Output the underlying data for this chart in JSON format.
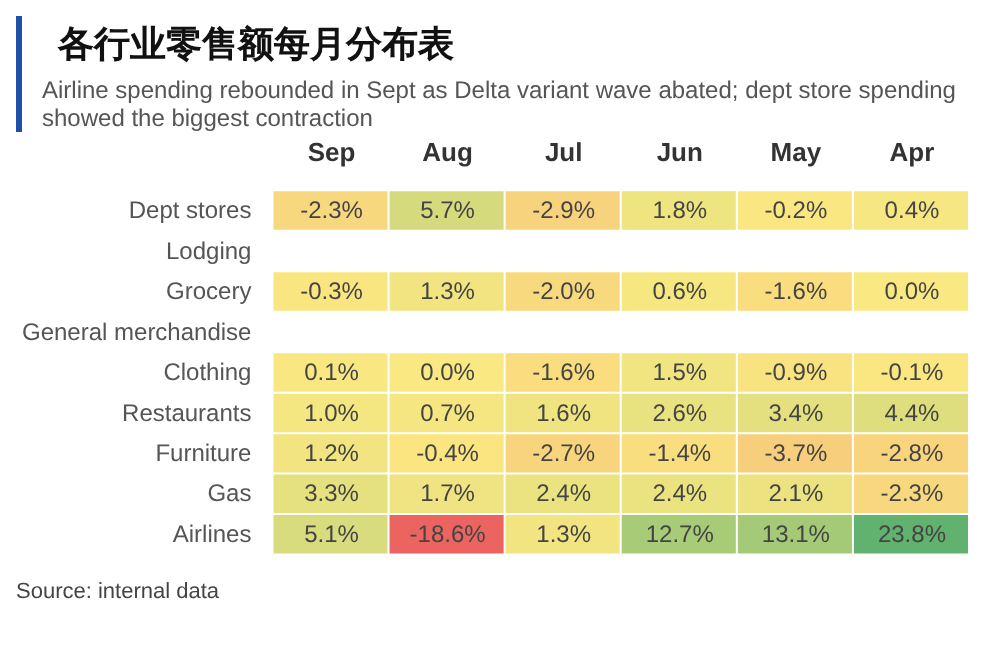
{
  "chart_data": {
    "type": "heatmap",
    "title": "各行业零售额每月分布表",
    "subtitle": "Airline spending rebounded in Sept as Delta variant wave abated; dept store spending showed the biggest contraction",
    "categories": [
      "Sep",
      "Aug",
      "Jul",
      "Jun",
      "May",
      "Apr"
    ],
    "y_categories": [
      "Dept stores",
      "Lodging",
      "Grocery",
      "General merchandise",
      "Clothing",
      "Restaurants",
      "Furniture",
      "Gas",
      "Airlines"
    ],
    "cells": [
      [
        -2.3,
        5.7,
        -2.9,
        1.8,
        -0.2,
        0.4
      ],
      [
        null,
        null,
        null,
        null,
        null,
        null
      ],
      [
        -0.3,
        1.3,
        -2.0,
        0.6,
        -1.6,
        0.0
      ],
      [
        null,
        null,
        null,
        null,
        null,
        null
      ],
      [
        0.1,
        0.0,
        -1.6,
        1.5,
        -0.9,
        -0.1
      ],
      [
        1.0,
        0.7,
        1.6,
        2.6,
        3.4,
        4.4
      ],
      [
        1.2,
        -0.4,
        -2.7,
        -1.4,
        -3.7,
        -2.8
      ],
      [
        3.3,
        1.7,
        2.4,
        2.4,
        2.1,
        -2.3
      ],
      [
        5.1,
        -18.6,
        1.3,
        12.7,
        13.1,
        23.8
      ]
    ],
    "cell_labels": [
      [
        "-2.3%",
        "5.7%",
        "-2.9%",
        "1.8%",
        "-0.2%",
        "0.4%"
      ],
      [
        null,
        null,
        null,
        null,
        null,
        null
      ],
      [
        "-0.3%",
        "1.3%",
        "-2.0%",
        "0.6%",
        "-1.6%",
        "0.0%"
      ],
      [
        null,
        null,
        null,
        null,
        null,
        null
      ],
      [
        "0.1%",
        "0.0%",
        "-1.6%",
        "1.5%",
        "-0.9%",
        "-0.1%"
      ],
      [
        "1.0%",
        "0.7%",
        "1.6%",
        "2.6%",
        "3.4%",
        "4.4%"
      ],
      [
        "1.2%",
        "-0.4%",
        "-2.7%",
        "-1.4%",
        "-3.7%",
        "-2.8%"
      ],
      [
        "3.3%",
        "1.7%",
        "2.4%",
        "2.4%",
        "2.1%",
        "-2.3%"
      ],
      [
        "5.1%",
        "-18.6%",
        "1.3%",
        "12.7%",
        "13.1%",
        "23.8%"
      ]
    ],
    "annotations": [
      "Source: internal data"
    ]
  }
}
